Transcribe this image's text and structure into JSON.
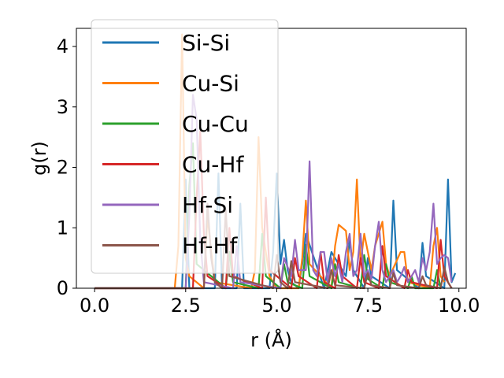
{
  "chart_data": {
    "type": "line",
    "title": "",
    "xlabel": "r (Å)",
    "ylabel": "g(r)",
    "xlim": [
      -0.5,
      10.2
    ],
    "ylim": [
      0,
      4.3
    ],
    "xticks": [
      0.0,
      2.5,
      5.0,
      7.5,
      10.0
    ],
    "xtick_labels": [
      "0.0",
      "2.5",
      "5.0",
      "7.5",
      "10.0"
    ],
    "yticks": [
      0,
      1,
      2,
      3,
      4
    ],
    "ytick_labels": [
      "0",
      "1",
      "2",
      "3",
      "4"
    ],
    "legend_position": "upper-left",
    "series": [
      {
        "name": "Si-Si",
        "color": "#1f77b4",
        "x": [
          0.0,
          2.4,
          2.5,
          2.6,
          3.3,
          3.4,
          3.5,
          3.9,
          4.0,
          4.1,
          4.8,
          4.9,
          5.0,
          5.1,
          5.2,
          5.3,
          5.4,
          5.6,
          5.7,
          5.8,
          6.3,
          6.4,
          6.5,
          6.9,
          7.0,
          7.1,
          7.4,
          7.5,
          7.6,
          8.1,
          8.2,
          8.3,
          8.9,
          9.0,
          9.1,
          9.6,
          9.7,
          9.8,
          9.9
        ],
        "y": [
          0,
          0,
          1.8,
          0,
          0,
          1.9,
          0,
          0,
          1.4,
          0,
          0,
          0.6,
          1.9,
          0.4,
          0.8,
          0.3,
          0.1,
          0,
          0.4,
          0.9,
          0,
          0.3,
          0.6,
          0.2,
          0.8,
          0.3,
          0,
          0.5,
          0.2,
          0,
          1.45,
          0.3,
          0,
          0.75,
          0.2,
          0,
          1.8,
          0.1,
          0.25
        ]
      },
      {
        "name": "Cu-Si",
        "color": "#ff7f0e",
        "x": [
          0.0,
          2.2,
          2.3,
          2.4,
          2.5,
          2.6,
          3.0,
          3.1,
          3.2,
          3.3,
          4.3,
          4.4,
          4.5,
          4.6,
          4.8,
          5.0,
          5.6,
          5.7,
          5.8,
          5.9,
          6.5,
          6.6,
          6.7,
          6.9,
          7.0,
          7.1,
          7.2,
          7.3,
          7.4,
          7.6,
          7.7,
          7.9,
          8.0,
          8.1,
          8.4,
          8.5,
          8.6,
          9.2,
          9.3,
          9.4,
          9.5,
          9.6
        ],
        "y": [
          0,
          0,
          0.7,
          4.2,
          0.5,
          0.2,
          0,
          1.2,
          0.6,
          0.1,
          0,
          0.3,
          2.5,
          1.0,
          0.2,
          0,
          0,
          0.5,
          1.45,
          0.4,
          0,
          0.7,
          1.05,
          0.95,
          0.3,
          0.6,
          1.8,
          0.4,
          0.9,
          0.3,
          0.7,
          1.1,
          0.4,
          0.2,
          0.6,
          0.6,
          0.1,
          0,
          0.7,
          1.0,
          0.2,
          0.1
        ]
      },
      {
        "name": "Cu-Cu",
        "color": "#2ca02c",
        "x": [
          0.0,
          2.5,
          2.6,
          2.7,
          2.8,
          3.6,
          3.7,
          3.8,
          4.5,
          4.6,
          4.7,
          5.1,
          5.2,
          5.3,
          5.7,
          5.8,
          5.9,
          6.5,
          6.6,
          6.7,
          7.3,
          7.4,
          7.5,
          7.9,
          8.0,
          8.1,
          8.6,
          8.7,
          8.8,
          9.3,
          9.4,
          9.5
        ],
        "y": [
          0,
          0,
          1.7,
          2.4,
          0.4,
          0,
          0.6,
          0.1,
          0,
          0.9,
          0.2,
          0,
          0.4,
          0.1,
          0,
          0.72,
          0.2,
          0,
          0.4,
          0.1,
          0,
          0.55,
          0.15,
          0,
          0.4,
          0.1,
          0,
          0.2,
          0,
          0,
          0.3,
          0
        ]
      },
      {
        "name": "Cu-Hf",
        "color": "#d62728",
        "x": [
          0.0,
          2.7,
          2.8,
          2.9,
          3.0,
          3.1,
          3.6,
          3.7,
          3.8,
          4.6,
          4.7,
          4.8,
          5.4,
          5.5,
          5.6,
          6.1,
          6.2,
          6.3,
          6.6,
          6.7,
          6.8,
          7.2,
          7.3,
          7.4,
          7.8,
          7.9,
          8.0,
          8.5,
          8.6,
          8.7,
          9.4,
          9.5,
          9.6,
          9.8
        ],
        "y": [
          0,
          0,
          1.5,
          2.6,
          0.9,
          0.2,
          0,
          1.0,
          0.2,
          0,
          1.5,
          0.3,
          0,
          0.5,
          0.2,
          0,
          0.6,
          0.1,
          0,
          0.55,
          0.2,
          0,
          0.5,
          0.1,
          0,
          0.7,
          0.2,
          0,
          0.3,
          0.1,
          0,
          0.8,
          0.2,
          0
        ]
      },
      {
        "name": "Hf-Si",
        "color": "#9467bd",
        "x": [
          0.0,
          2.5,
          2.6,
          2.7,
          2.8,
          2.9,
          3.0,
          3.8,
          3.9,
          4.0,
          5.1,
          5.2,
          5.4,
          5.5,
          5.6,
          5.8,
          5.9,
          6.0,
          6.1,
          6.2,
          6.3,
          6.4,
          6.5,
          6.6,
          6.7,
          6.8,
          6.9,
          7.0,
          7.1,
          7.2,
          7.3,
          7.4,
          7.5,
          7.6,
          7.7,
          7.8,
          7.9,
          8.0,
          8.1,
          8.2,
          8.3,
          8.4,
          8.5,
          8.6,
          8.7,
          8.8,
          8.9,
          9.0,
          9.1,
          9.2,
          9.3,
          9.4,
          9.5,
          9.6,
          9.7,
          9.8
        ],
        "y": [
          0,
          0,
          1.2,
          3.2,
          2.8,
          0.8,
          0.1,
          0,
          0.7,
          0.1,
          0,
          0.5,
          0.2,
          0.8,
          0.3,
          0.3,
          2.1,
          0.3,
          0.2,
          0.6,
          0.6,
          0.1,
          0.5,
          0.2,
          0.4,
          0.1,
          0.6,
          0.9,
          0.2,
          0.3,
          0.9,
          0.2,
          0.3,
          0.15,
          0.7,
          1.1,
          0.3,
          0.1,
          0.2,
          0.3,
          0.1,
          0.2,
          0.35,
          0.1,
          0.2,
          0.3,
          0.1,
          0.5,
          0.3,
          0.6,
          1.4,
          0.4,
          0.5,
          0.55,
          0.5,
          0.1
        ]
      },
      {
        "name": "Hf-Hf",
        "color": "#8c564b",
        "x": [
          0.0,
          3.0,
          3.1,
          3.2,
          3.3,
          3.5,
          3.6,
          3.7,
          4.9,
          5.0,
          5.1,
          5.3,
          5.4,
          5.5,
          6.4,
          6.5,
          6.6,
          7.4,
          7.5,
          7.6,
          8.1,
          8.2,
          8.3,
          8.9,
          9.0,
          9.1,
          9.5,
          9.6,
          9.7,
          9.8
        ],
        "y": [
          0,
          0,
          1.4,
          0.5,
          0.1,
          0,
          1.3,
          0.2,
          0,
          0.55,
          0.1,
          0,
          0.45,
          0.1,
          0,
          0.3,
          0.05,
          0,
          0.25,
          0.05,
          0,
          0.25,
          0.05,
          0,
          0.2,
          0.05,
          0,
          0.35,
          0.1,
          0
        ]
      }
    ]
  }
}
